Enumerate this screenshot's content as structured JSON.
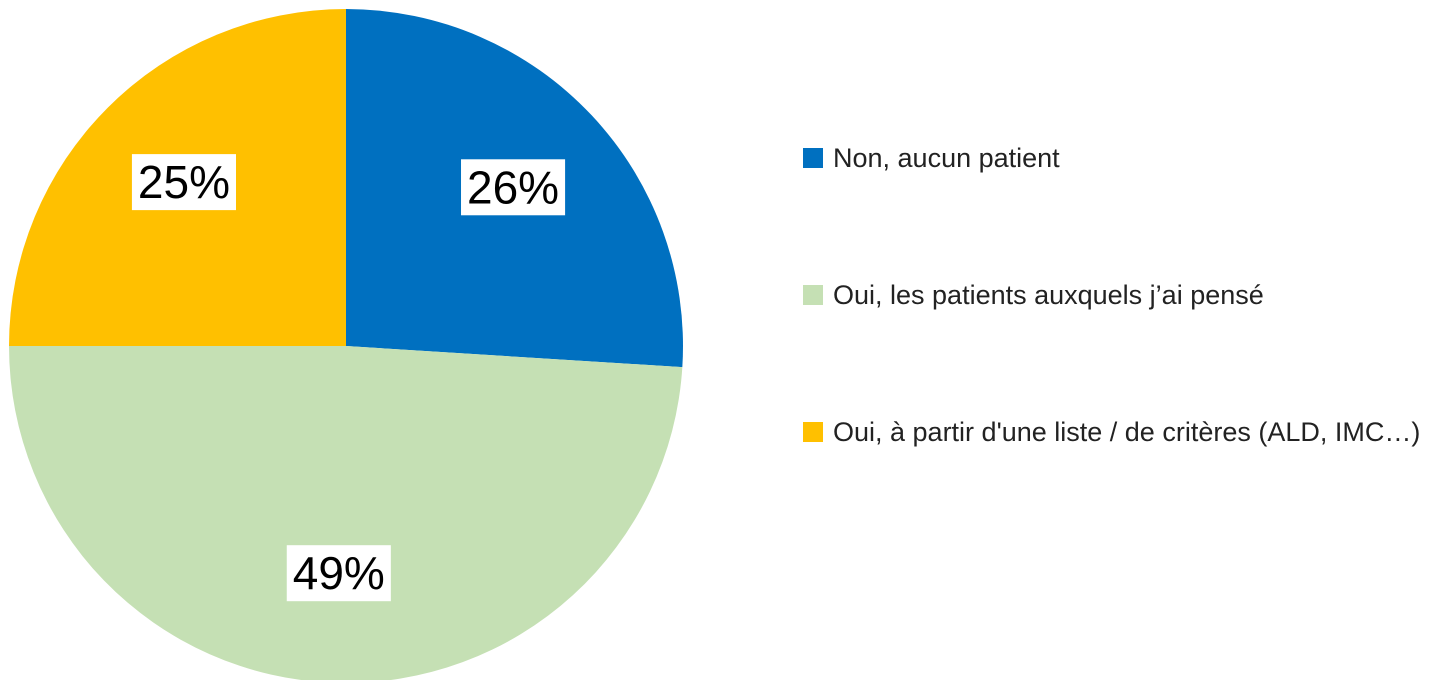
{
  "chart_data": {
    "type": "pie",
    "categories": [
      "Non, aucun patient",
      "Oui, les patients auxquels j’ai pensé",
      "Oui, à partir d'une liste / de critères (ALD, IMC…)"
    ],
    "values": [
      26,
      49,
      25
    ],
    "value_labels": [
      "26%",
      "49%",
      "25%"
    ],
    "colors": [
      "#0070c0",
      "#c5e0b4",
      "#ffc000"
    ]
  }
}
